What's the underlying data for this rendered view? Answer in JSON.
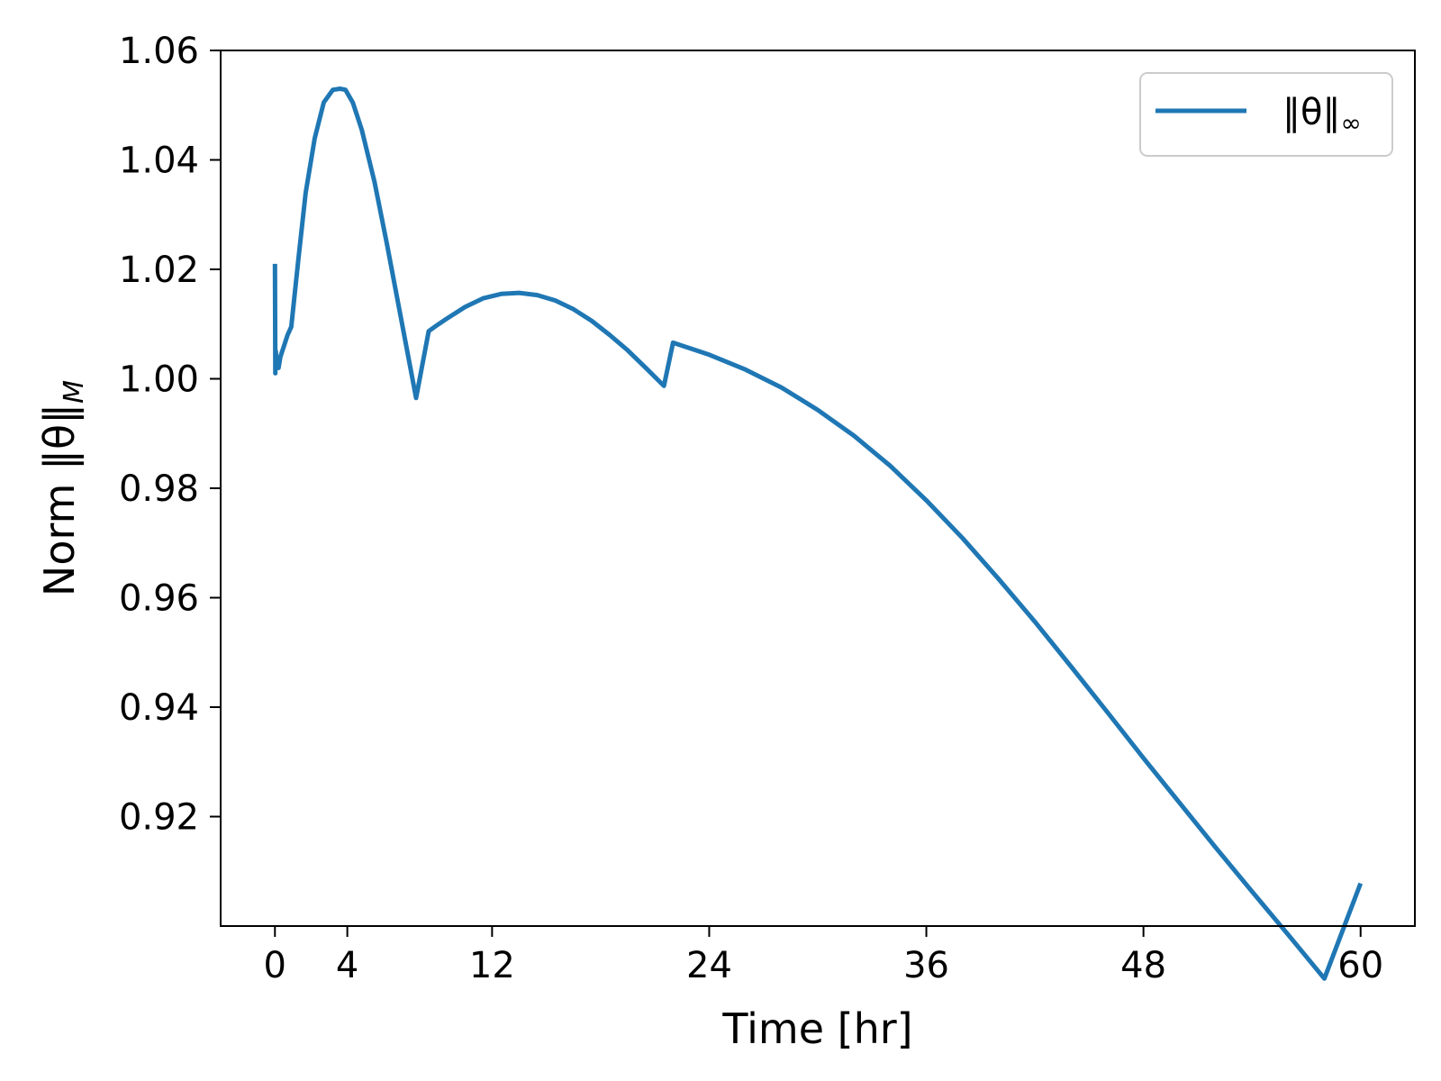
{
  "chart_data": {
    "type": "line",
    "xlabel": "Time [hr]",
    "ylabel_main": "Norm ‖θ‖",
    "ylabel_sub": "M",
    "xlim": [
      -3,
      63
    ],
    "ylim": [
      0.9,
      1.06
    ],
    "xticks": [
      0,
      4,
      12,
      24,
      36,
      48,
      60
    ],
    "yticks": [
      0.92,
      0.94,
      0.96,
      0.98,
      1.0,
      1.02,
      1.04,
      1.06
    ],
    "xtick_labels": [
      "0",
      "4",
      "12",
      "24",
      "36",
      "48",
      "60"
    ],
    "ytick_labels": [
      "0.92",
      "0.94",
      "0.96",
      "0.98",
      "1.00",
      "1.02",
      "1.04",
      "1.06"
    ],
    "grid": false,
    "legend_position": "top-right",
    "series": [
      {
        "name": "‖θ‖",
        "name_sub": "∞",
        "color": "#1f77b4",
        "x": [
          0.0,
          0.02,
          0.05,
          0.1,
          0.2,
          0.3,
          0.5,
          0.7,
          0.9,
          1.3,
          1.7,
          2.2,
          2.7,
          3.2,
          3.6,
          3.9,
          4.3,
          4.8,
          5.5,
          6.2,
          7.0,
          7.8,
          8.5,
          9.0,
          9.5,
          10.5,
          11.5,
          12.5,
          13.5,
          14.5,
          15.5,
          16.5,
          17.5,
          18.5,
          19.5,
          20.5,
          21.5,
          22.0,
          24.0,
          26.0,
          28.0,
          30.0,
          32.0,
          34.0,
          36.0,
          38.0,
          40.0,
          42.0,
          44.0,
          46.0,
          48.0,
          50.0,
          52.0,
          54.0,
          56.0,
          58.0,
          60.0
        ],
        "y": [
          1.021,
          1.001,
          1.005,
          1.002,
          1.002,
          1.004,
          1.006,
          1.008,
          1.0095,
          1.022,
          1.034,
          1.044,
          1.0505,
          1.0528,
          1.053,
          1.0528,
          1.0505,
          1.0455,
          1.036,
          1.0245,
          1.0105,
          0.9965,
          1.0087,
          1.0099,
          1.011,
          1.0131,
          1.0147,
          1.0155,
          1.0157,
          1.0153,
          1.0143,
          1.0127,
          1.0106,
          1.008,
          1.0052,
          1.002,
          0.9987,
          1.0066,
          1.0044,
          1.0017,
          0.9984,
          0.9943,
          0.9896,
          0.9841,
          0.9778,
          0.9709,
          0.9634,
          0.9556,
          0.9474,
          0.9391,
          0.9307,
          0.9225,
          0.9143,
          0.9063,
          0.8984,
          0.8904,
          0.9078
        ]
      }
    ]
  }
}
